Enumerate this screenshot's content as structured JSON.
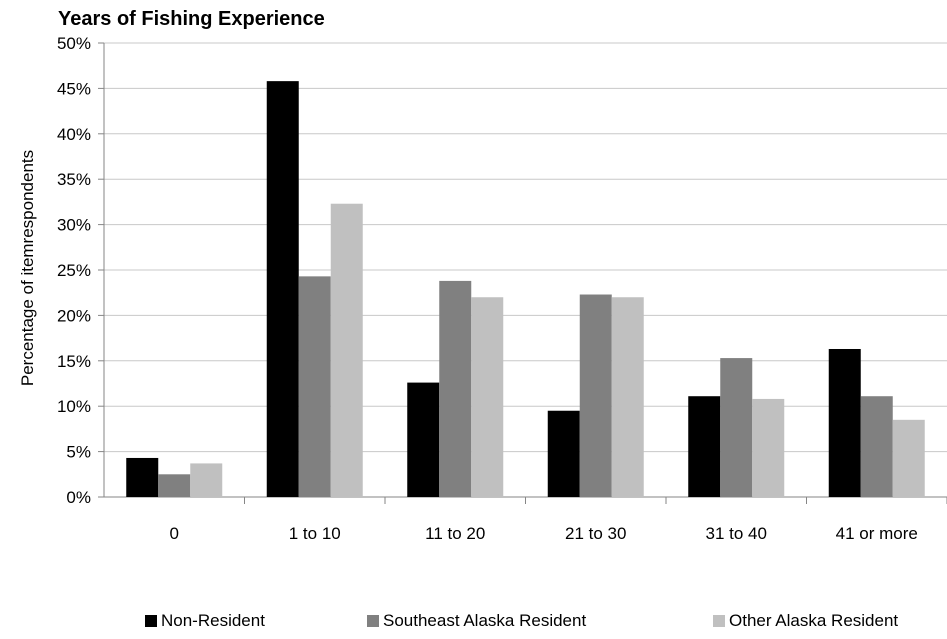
{
  "chart_data": {
    "type": "bar",
    "title": "Years of Fishing Experience",
    "xlabel": "",
    "ylabel": "Percentage of itemrespondents",
    "categories": [
      "0",
      "1 to 10",
      "11 to 20",
      "21 to 30",
      "31 to 40",
      "41 or more"
    ],
    "series": [
      {
        "name": "Non-Resident",
        "color": "#000000",
        "values": [
          4.3,
          45.8,
          12.6,
          9.5,
          11.1,
          16.3
        ]
      },
      {
        "name": "Southeast Alaska Resident",
        "color": "#808080",
        "values": [
          2.5,
          24.3,
          23.8,
          22.3,
          15.3,
          11.1
        ]
      },
      {
        "name": "Other Alaska Resident",
        "color": "#c0c0c0",
        "values": [
          3.7,
          32.3,
          22.0,
          22.0,
          10.8,
          8.5
        ]
      }
    ],
    "ylim": [
      0,
      50
    ],
    "yticks": [
      "0%",
      "5%",
      "10%",
      "15%",
      "20%",
      "25%",
      "30%",
      "35%",
      "40%",
      "45%",
      "50%"
    ],
    "grid": true,
    "legend_position": "bottom"
  }
}
